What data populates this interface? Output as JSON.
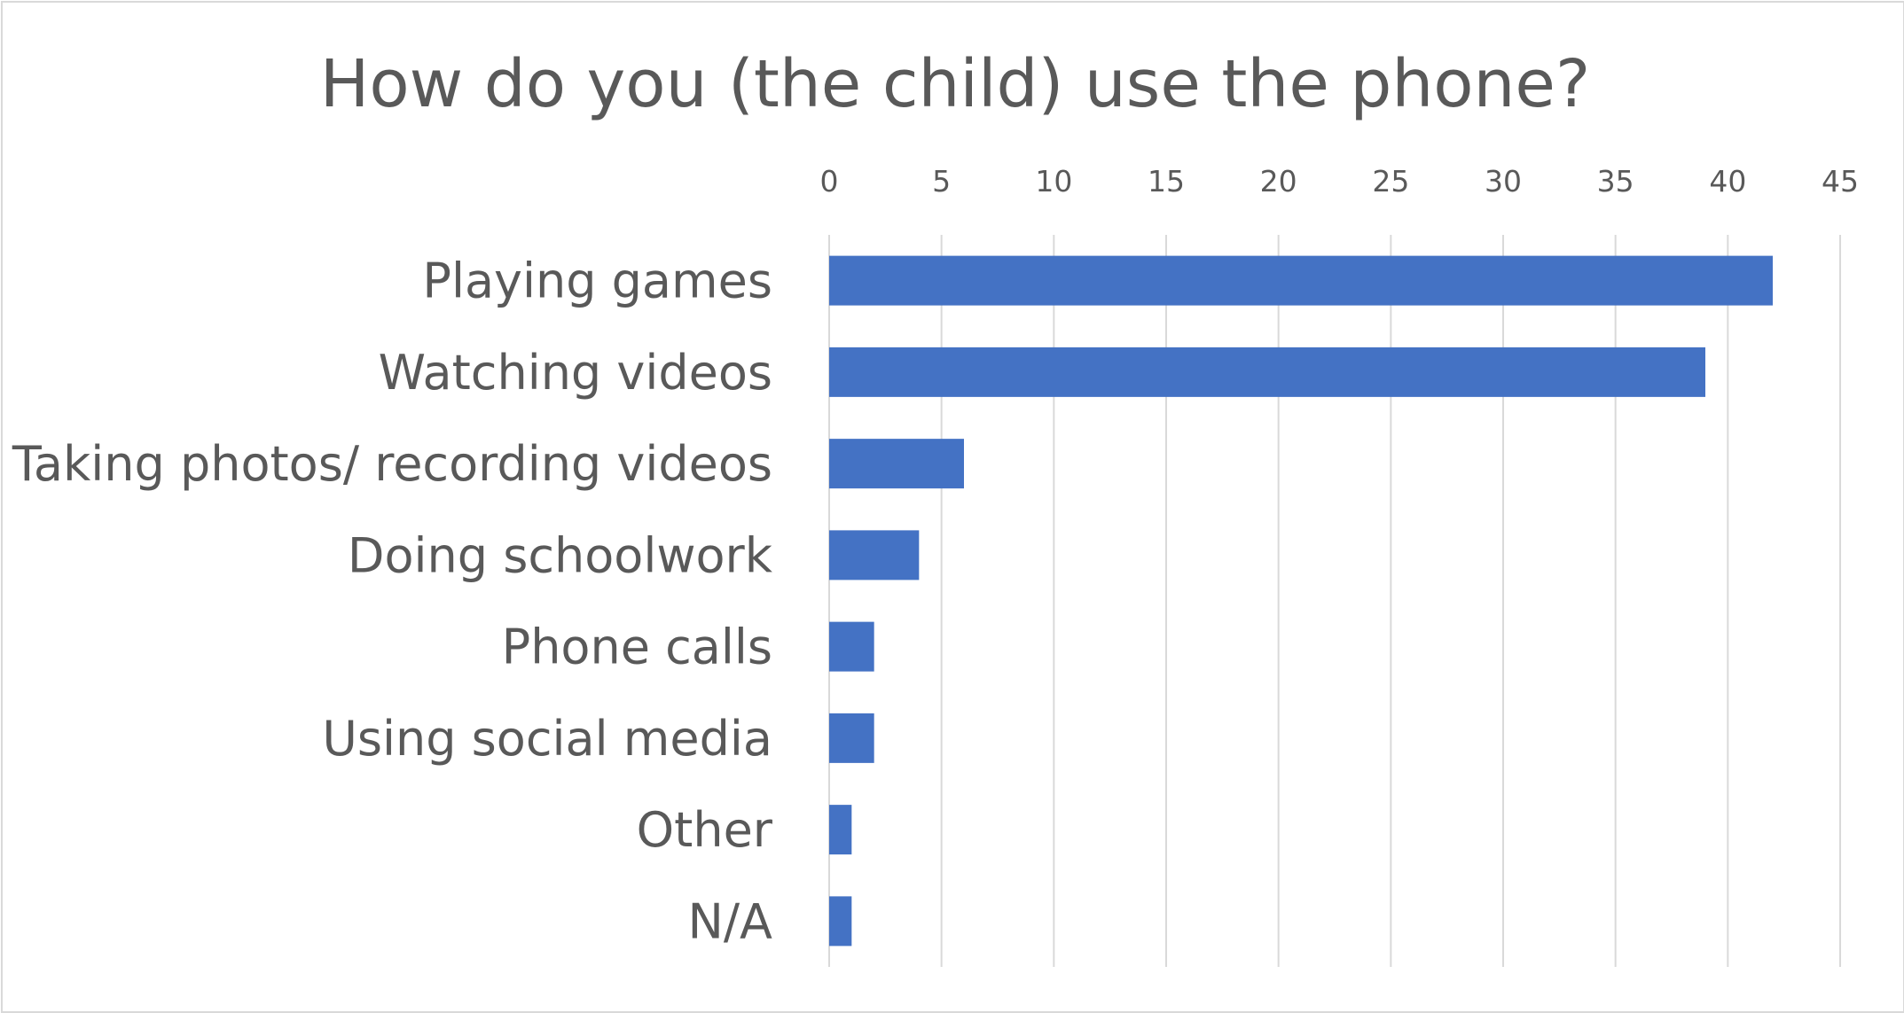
{
  "chart_data": {
    "type": "bar",
    "orientation": "horizontal",
    "title": "How do you (the child) use the phone?",
    "xlabel": "",
    "ylabel": "",
    "categories": [
      "Playing games",
      "Watching videos",
      "Taking photos/ recording videos",
      "Doing schoolwork",
      "Phone calls",
      "Using social media",
      "Other",
      "N/A"
    ],
    "values": [
      42,
      39,
      6,
      4,
      2,
      2,
      1,
      1
    ],
    "xlim": [
      0,
      45
    ],
    "x_ticks": [
      0,
      5,
      10,
      15,
      20,
      25,
      30,
      35,
      40,
      45
    ],
    "x_axis_position": "top",
    "grid": true,
    "legend": "none",
    "bar_color": "#4472C4"
  }
}
